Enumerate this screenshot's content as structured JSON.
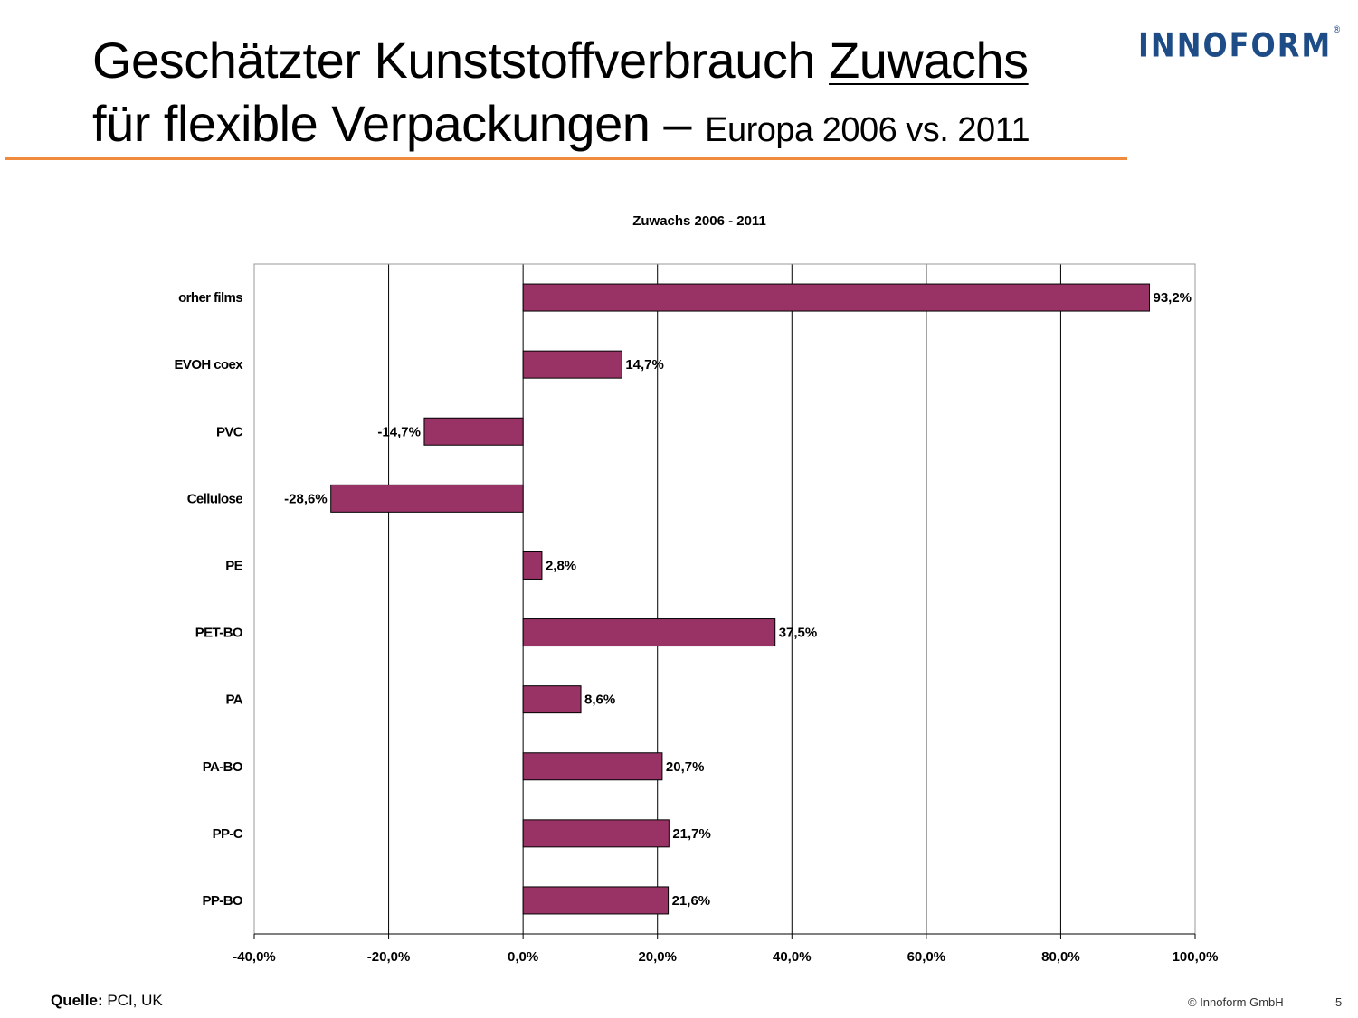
{
  "header": {
    "title_line1": "Geschätzter Kunststoffverbrauch",
    "title_underlined": "Zuwachs",
    "title_line2": "für flexible Verpackungen –",
    "title_suffix": "Europa 2006 vs. 2011",
    "logo": "INNOFORM",
    "logo_mark": "®",
    "accent_color": "#f08a3c",
    "logo_color": "#1d4c86"
  },
  "chart_data": {
    "type": "bar",
    "orientation": "horizontal",
    "title": "Zuwachs  2006 - 2011",
    "categories": [
      "orher films",
      "EVOH coex",
      "PVC",
      "Cellulose",
      "PE",
      "PET-BO",
      "PA",
      "PA-BO",
      "PP-C",
      "PP-BO"
    ],
    "values": [
      93.2,
      14.7,
      -14.7,
      -28.6,
      2.8,
      37.5,
      8.6,
      20.7,
      21.7,
      21.6
    ],
    "data_labels": [
      "93,2%",
      "14,7%",
      "-14,7%",
      "-28,6%",
      "2,8%",
      "37,5%",
      "8,6%",
      "20,7%",
      "21,7%",
      "21,6%"
    ],
    "xlim": [
      -40,
      100
    ],
    "x_ticks": [
      -40,
      -20,
      0,
      20,
      40,
      60,
      80,
      100
    ],
    "x_tick_labels": [
      "-40,0%",
      "-20,0%",
      "0,0%",
      "20,0%",
      "40,0%",
      "60,0%",
      "80,0%",
      "100,0%"
    ],
    "grid": "vertical",
    "bar_color": "#993366",
    "legend": "none"
  },
  "footer": {
    "source_label": "Quelle:",
    "source_value": " PCI, UK",
    "copyright": "© Innoform GmbH",
    "page": "5"
  }
}
